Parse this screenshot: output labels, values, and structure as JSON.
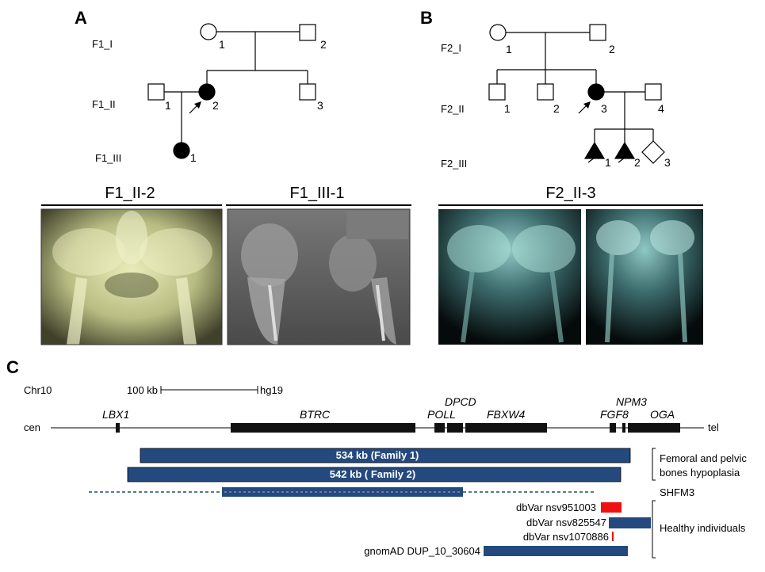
{
  "panels": {
    "a": "A",
    "b": "B",
    "c": "C"
  },
  "family1": {
    "generations": [
      "F1_I",
      "F1_II",
      "F1_III"
    ],
    "numbers": {
      "i1": "1",
      "i2": "2",
      "ii1": "1",
      "ii2": "2",
      "ii3": "3",
      "iii1": "1"
    },
    "photo_titles": [
      "F1_II-2",
      "F1_III-1"
    ]
  },
  "family2": {
    "generations": [
      "F2_I",
      "F2_II",
      "F2_III"
    ],
    "numbers": {
      "i1": "1",
      "i2": "2",
      "ii1": "1",
      "ii2": "2",
      "ii3": "3",
      "ii4": "4",
      "iii1": "1",
      "iii2": "2",
      "iii3": "3"
    },
    "photo_title": "F2_II-3"
  },
  "genome": {
    "chromosome": "Chr10",
    "scale_label": "100 kb",
    "assembly": "hg19",
    "cen": "cen",
    "tel": "tel",
    "genes": [
      "LBX1",
      "BTRC",
      "POLL",
      "DPCD",
      "FBXW4",
      "FGF8",
      "NPM3",
      "OGA"
    ]
  },
  "tracks": {
    "family1_label": "534 kb  (Family 1)",
    "family2_label": "542 kb  ( Family 2)",
    "phenotype_line1": "Femoral and pelvic",
    "phenotype_line2": "bones hypoplasia",
    "shfm": "SHFM3",
    "healthy": "Healthy individuals",
    "variants": [
      "dbVar nsv951003",
      "dbVar nsv825547",
      "dbVar nsv1070886",
      "gnomAD DUP_10_30604"
    ]
  },
  "colors": {
    "bar": "#24497f",
    "red": "#ee1111",
    "affected": "#000000"
  }
}
